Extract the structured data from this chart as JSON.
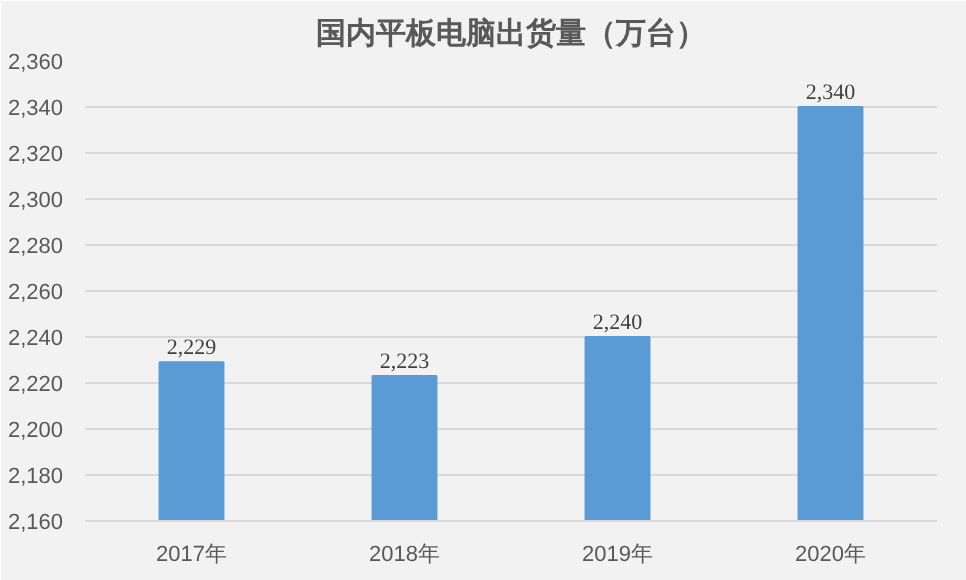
{
  "chart_data": {
    "type": "bar",
    "title": "国内平板电脑出货量（万台）",
    "categories": [
      "2017年",
      "2018年",
      "2019年",
      "2020年"
    ],
    "values": [
      2229,
      2223,
      2240,
      2340
    ],
    "color": "#5b9bd5",
    "ylim": [
      2160,
      2360
    ],
    "yticks": [
      {
        "value": 2160,
        "label": "2,160"
      },
      {
        "value": 2180,
        "label": "2,180"
      },
      {
        "value": 2200,
        "label": "2,200"
      },
      {
        "value": 2220,
        "label": "2,220"
      },
      {
        "value": 2240,
        "label": "2,240"
      },
      {
        "value": 2260,
        "label": "2,260"
      },
      {
        "value": 2280,
        "label": "2,280"
      },
      {
        "value": 2300,
        "label": "2,300"
      },
      {
        "value": 2320,
        "label": "2,320"
      },
      {
        "value": 2340,
        "label": "2,340"
      },
      {
        "value": 2360,
        "label": "2,360"
      }
    ],
    "value_labels": [
      "2,229",
      "2,223",
      "2,240",
      "2,340"
    ],
    "grid": "y"
  }
}
